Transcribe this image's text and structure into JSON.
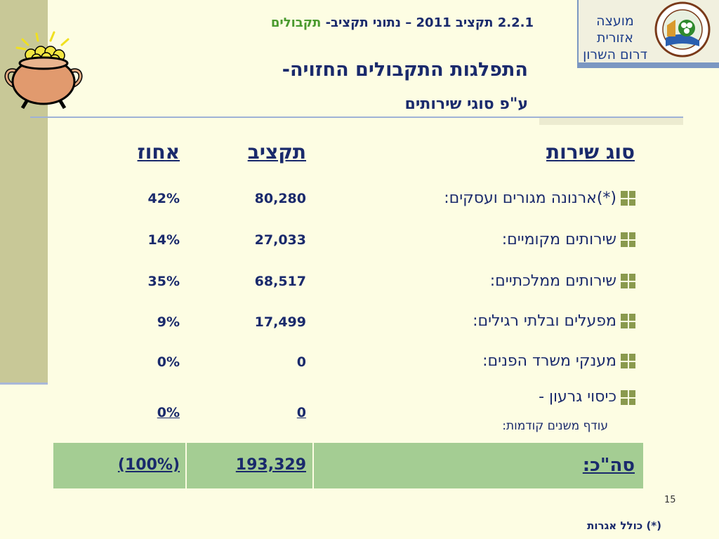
{
  "header": {
    "section": "2.2.1 תקציב 2011 – נתוני תקציב-",
    "section_accent": "תקבולים"
  },
  "logo": {
    "line1": "מועצה אזורית",
    "line2": "דרום השרון",
    "ring_text": "מועצה אזורית דרום השרון"
  },
  "title": "התפלגות התקבולים החזויה-",
  "subtitle": "ע\"פ סוגי שירותים",
  "table": {
    "headers": {
      "service": "סוג שירות",
      "budget": "תקציב",
      "percent": "אחוז"
    },
    "rows": [
      {
        "label": "(*)ארנונה מגורים ועסקים:",
        "budget": "80,280",
        "percent": "42%"
      },
      {
        "label": "שירותים מקומיים:",
        "budget": "27,033",
        "percent": "14%"
      },
      {
        "label": "שירותים ממלכתיים:",
        "budget": "68,517",
        "percent": "35%"
      },
      {
        "label": "מפעלים ובלתי  רגילים:",
        "budget": "17,499",
        "percent": "9%"
      },
      {
        "label": "מענקי משרד הפנים:",
        "budget": "0",
        "percent": "0%"
      },
      {
        "label": "כיסוי גרעון -",
        "sublabel": "עודף משנים קודמות:",
        "budget": "0",
        "percent": "0%"
      }
    ],
    "total": {
      "label": "סה\"כ:",
      "budget": "193,329",
      "percent": "(100%)"
    }
  },
  "page_number": "15",
  "footnote": "(*) כולל אגרות",
  "colors": {
    "background": "#fdfde3",
    "text": "#1a2a6c",
    "accent_green": "#4a9a2e",
    "total_row": "#a4cd93",
    "left_band": "#c8c897"
  }
}
